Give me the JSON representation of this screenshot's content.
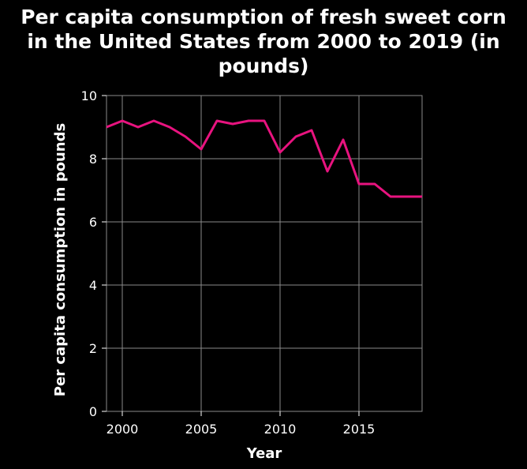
{
  "chart_data": {
    "type": "line",
    "title_lines": [
      "Per capita consumption of fresh sweet corn",
      "in the United States from 2000 to 2019 (in",
      "pounds)"
    ],
    "xlabel": "Year",
    "ylabel": "Per capita consumption in pounds",
    "xlim": [
      1999,
      2019
    ],
    "ylim": [
      0,
      10
    ],
    "x_ticks": [
      2000,
      2005,
      2010,
      2015
    ],
    "y_ticks": [
      0,
      2,
      4,
      6,
      8,
      10
    ],
    "x_tick_labels": [
      "2000",
      "2005",
      "2010",
      "2015"
    ],
    "y_tick_labels": [
      "0",
      "2",
      "4",
      "6",
      "8",
      "10"
    ],
    "grid": true,
    "background_color": "#000000",
    "grid_color": "#8a8a8a",
    "series": [
      {
        "name": "Per capita consumption",
        "color": "#e8137f",
        "x": [
          1999,
          2000,
          2001,
          2002,
          2003,
          2004,
          2005,
          2006,
          2007,
          2008,
          2009,
          2010,
          2011,
          2012,
          2013,
          2014,
          2015,
          2016,
          2017,
          2018,
          2019
        ],
        "values": [
          9.0,
          9.2,
          9.0,
          9.2,
          9.0,
          8.7,
          8.3,
          9.2,
          9.1,
          9.2,
          9.2,
          8.2,
          8.7,
          8.9,
          7.6,
          8.6,
          7.2,
          7.2,
          6.8,
          6.8,
          6.8
        ]
      }
    ]
  }
}
